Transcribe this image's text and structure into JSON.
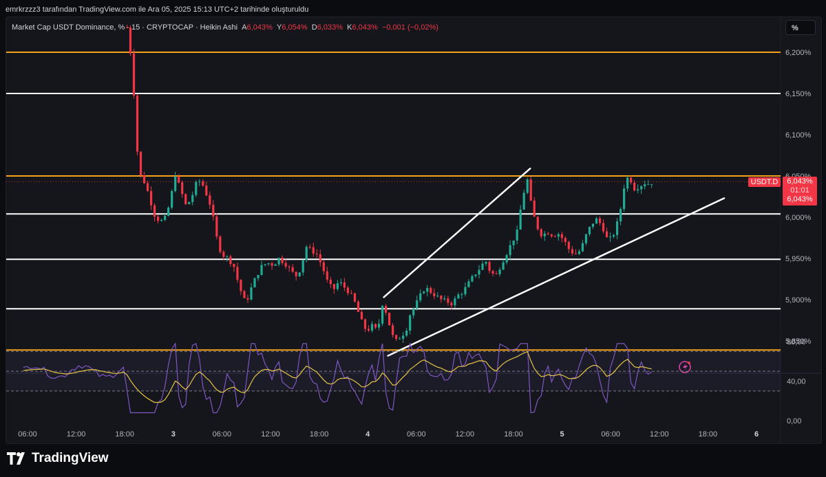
{
  "header": {
    "author_line": "emrkrzzz3 tarafından TradingView.com ile Ara 05, 2025 15:13 UTC+2 tarihinde oluşturuldu"
  },
  "legend": {
    "symbol": "Market Cap USDT Dominance, % · 15 · CRYPTOCAP · Heikin Ashi",
    "a_label": "A",
    "a_value": "6,043%",
    "y_label": "Y",
    "y_value": "6,054%",
    "d_label": "D",
    "d_value": "6,033%",
    "k_label": "K",
    "k_value": "6,043%",
    "change": "−0,001 (−0,02%)"
  },
  "scale_button": "%",
  "price_axis": {
    "labels": [
      {
        "text": "6,200%",
        "value": 6.2
      },
      {
        "text": "6,150%",
        "value": 6.15
      },
      {
        "text": "6,100%",
        "value": 6.1
      },
      {
        "text": "6,050%",
        "value": 6.05
      },
      {
        "text": "6,000%",
        "value": 6.0
      },
      {
        "text": "5,950%",
        "value": 5.95
      },
      {
        "text": "5,900%",
        "value": 5.9
      },
      {
        "text": "5,850%",
        "value": 5.85
      }
    ]
  },
  "symbol_tag": "USDT.D",
  "current_price": {
    "value": "6,043%",
    "countdown": "01:01",
    "value2": "6,043%"
  },
  "rsi_axis": {
    "labels": [
      {
        "text": "80,00",
        "value": 80
      },
      {
        "text": "40,00",
        "value": 40
      },
      {
        "text": "0,00",
        "value": 0
      }
    ]
  },
  "time_axis": {
    "labels": [
      {
        "text": "06:00",
        "bold": false
      },
      {
        "text": "12:00",
        "bold": false
      },
      {
        "text": "18:00",
        "bold": false
      },
      {
        "text": "3",
        "bold": true
      },
      {
        "text": "06:00",
        "bold": false
      },
      {
        "text": "12:00",
        "bold": false
      },
      {
        "text": "18:00",
        "bold": false
      },
      {
        "text": "4",
        "bold": true
      },
      {
        "text": "06:00",
        "bold": false
      },
      {
        "text": "12:00",
        "bold": false
      },
      {
        "text": "18:00",
        "bold": false
      },
      {
        "text": "5",
        "bold": true
      },
      {
        "text": "06:00",
        "bold": false
      },
      {
        "text": "12:00",
        "bold": false
      },
      {
        "text": "18:00",
        "bold": false
      },
      {
        "text": "6",
        "bold": true
      }
    ]
  },
  "brand": "TradingView",
  "colors": {
    "up": "#22ab94",
    "down": "#f23645",
    "orange_line": "#f7a21b",
    "white_line": "#ffffff",
    "rsi": "#7e57c2",
    "rsi_ma": "#e8c547"
  },
  "chart_data": {
    "type": "candlestick",
    "style": "Heikin Ashi",
    "interval": "15",
    "ylim": [
      5.82,
      6.22
    ],
    "horizontal_levels": [
      {
        "price": 6.2,
        "color": "orange"
      },
      {
        "price": 6.15,
        "color": "white"
      },
      {
        "price": 6.05,
        "color": "orange"
      },
      {
        "price": 6.004,
        "color": "white"
      },
      {
        "price": 5.949,
        "color": "white"
      },
      {
        "price": 5.889,
        "color": "white"
      },
      {
        "price": 5.839,
        "color": "orange"
      }
    ],
    "trend_lines": [
      {
        "from": {
          "t": 52.5,
          "p": 5.903
        },
        "to": {
          "t": 73.7,
          "p": 6.059
        }
      },
      {
        "from": {
          "t": 53.1,
          "p": 5.832
        },
        "to": {
          "t": 101.8,
          "p": 6.023
        }
      }
    ],
    "price_path": [
      [
        15.3,
        6.23
      ],
      [
        15.8,
        6.2
      ],
      [
        16.3,
        6.15
      ],
      [
        16.8,
        6.08
      ],
      [
        17.3,
        6.05
      ],
      [
        18.0,
        6.04
      ],
      [
        18.7,
        6.02
      ],
      [
        19.4,
        6.0
      ],
      [
        20.2,
        5.995
      ],
      [
        21.0,
        6.0
      ],
      [
        21.8,
        6.03
      ],
      [
        22.3,
        6.052
      ],
      [
        23.0,
        6.035
      ],
      [
        23.8,
        6.015
      ],
      [
        24.5,
        6.02
      ],
      [
        25.3,
        6.04
      ],
      [
        26.0,
        6.045
      ],
      [
        26.8,
        6.028
      ],
      [
        27.5,
        6.012
      ],
      [
        28.3,
        5.975
      ],
      [
        29.0,
        5.955
      ],
      [
        30.0,
        5.95
      ],
      [
        30.8,
        5.94
      ],
      [
        31.6,
        5.915
      ],
      [
        32.5,
        5.895
      ],
      [
        33.2,
        5.912
      ],
      [
        34.0,
        5.928
      ],
      [
        34.8,
        5.94
      ],
      [
        35.6,
        5.945
      ],
      [
        36.5,
        5.942
      ],
      [
        37.3,
        5.95
      ],
      [
        38.1,
        5.945
      ],
      [
        38.9,
        5.937
      ],
      [
        39.7,
        5.928
      ],
      [
        40.5,
        5.938
      ],
      [
        41.2,
        5.965
      ],
      [
        42.0,
        5.96
      ],
      [
        42.8,
        5.955
      ],
      [
        43.6,
        5.94
      ],
      [
        44.4,
        5.92
      ],
      [
        45.2,
        5.912
      ],
      [
        46.0,
        5.922
      ],
      [
        46.8,
        5.915
      ],
      [
        47.6,
        5.908
      ],
      [
        48.4,
        5.895
      ],
      [
        49.2,
        5.875
      ],
      [
        50.0,
        5.862
      ],
      [
        50.8,
        5.868
      ],
      [
        51.6,
        5.862
      ],
      [
        52.3,
        5.895
      ],
      [
        53.0,
        5.882
      ],
      [
        53.6,
        5.858
      ],
      [
        54.3,
        5.85
      ],
      [
        55.0,
        5.856
      ],
      [
        55.7,
        5.862
      ],
      [
        56.3,
        5.882
      ],
      [
        57.0,
        5.892
      ],
      [
        57.8,
        5.905
      ],
      [
        58.5,
        5.915
      ],
      [
        59.2,
        5.91
      ],
      [
        60.0,
        5.905
      ],
      [
        60.8,
        5.9
      ],
      [
        61.6,
        5.898
      ],
      [
        62.4,
        5.895
      ],
      [
        63.2,
        5.905
      ],
      [
        64.0,
        5.91
      ],
      [
        64.8,
        5.92
      ],
      [
        65.6,
        5.93
      ],
      [
        66.4,
        5.938
      ],
      [
        67.2,
        5.948
      ],
      [
        68.0,
        5.932
      ],
      [
        68.8,
        5.93
      ],
      [
        69.6,
        5.945
      ],
      [
        70.4,
        5.958
      ],
      [
        71.2,
        5.972
      ],
      [
        71.8,
        5.982
      ],
      [
        72.6,
        6.025
      ],
      [
        73.3,
        6.045
      ],
      [
        73.9,
        6.012
      ],
      [
        74.6,
        5.99
      ],
      [
        75.4,
        5.978
      ],
      [
        76.2,
        5.982
      ],
      [
        77.0,
        5.978
      ],
      [
        77.8,
        5.98
      ],
      [
        78.6,
        5.972
      ],
      [
        79.4,
        5.96
      ],
      [
        80.2,
        5.955
      ],
      [
        81.0,
        5.96
      ],
      [
        81.8,
        5.978
      ],
      [
        82.6,
        5.992
      ],
      [
        83.4,
        5.998
      ],
      [
        84.2,
        5.988
      ],
      [
        85.0,
        5.97
      ],
      [
        85.8,
        5.98
      ],
      [
        86.6,
        6.0
      ],
      [
        87.4,
        6.042
      ],
      [
        88.0,
        6.05
      ],
      [
        88.8,
        6.035
      ],
      [
        89.6,
        6.038
      ],
      [
        90.4,
        6.042
      ],
      [
        91.0,
        6.04
      ],
      [
        91.4,
        6.043
      ]
    ],
    "rsi": {
      "ylim": [
        0,
        80
      ],
      "upper_band": 70,
      "middle_band": 50,
      "lower_band": 30
    }
  }
}
